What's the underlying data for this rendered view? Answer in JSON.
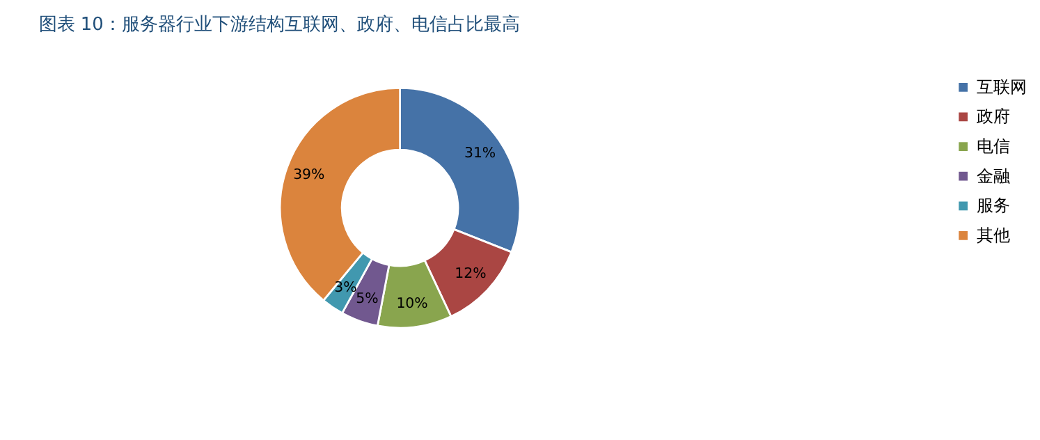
{
  "chart_data": {
    "type": "donut",
    "title": "图表 10：服务器行业下游结构互联网、政府、电信占比最高",
    "categories": [
      "互联网",
      "政府",
      "电信",
      "金融",
      "服务",
      "其他"
    ],
    "values": [
      31,
      12,
      10,
      5,
      3,
      39
    ],
    "colors": [
      "#4572a7",
      "#aa4643",
      "#89a54e",
      "#71588f",
      "#4198af",
      "#db843d"
    ],
    "value_labels": [
      "31%",
      "12%",
      "10%",
      "5%",
      "3%",
      "39%"
    ],
    "legend": "right"
  }
}
